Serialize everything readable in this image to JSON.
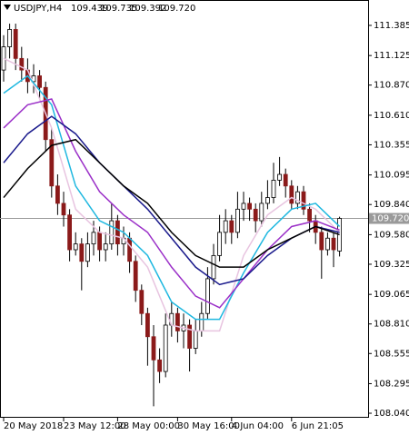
{
  "chart_data": {
    "type": "candlestick",
    "symbol": "USDJPY,H4",
    "ohlc_labels": [
      "109.439",
      "109.735",
      "109.392",
      "109.720"
    ],
    "last_price": {
      "value": 109.72,
      "label": "109.720"
    },
    "categories": [
      "20 May 2018",
      null,
      null,
      null,
      null,
      null,
      null,
      null,
      null,
      null,
      "23 May 12:00",
      null,
      null,
      null,
      null,
      null,
      null,
      null,
      null,
      "28 May 00:00",
      null,
      null,
      null,
      null,
      null,
      null,
      null,
      null,
      null,
      "30 May 16:00",
      null,
      null,
      null,
      null,
      null,
      null,
      null,
      null,
      "4 Jun 04:00",
      null,
      null,
      null,
      null,
      null,
      null,
      null,
      null,
      null,
      "6 Jun 21:05",
      null,
      null,
      null,
      null,
      null,
      null,
      null,
      null
    ],
    "open": [
      111.0,
      111.2,
      111.35,
      111.1,
      111.0,
      110.9,
      110.95,
      110.85,
      110.4,
      110.0,
      109.85,
      109.75,
      109.45,
      109.5,
      109.35,
      109.5,
      109.6,
      109.45,
      109.5,
      109.7,
      109.5,
      109.55,
      109.35,
      109.1,
      108.9,
      108.7,
      108.5,
      108.4,
      108.8,
      108.9,
      108.75,
      108.8,
      108.6,
      108.75,
      108.9,
      109.2,
      109.4,
      109.6,
      109.7,
      109.6,
      109.8,
      109.85,
      109.8,
      109.7,
      109.85,
      109.9,
      110.05,
      110.1,
      110.0,
      109.85,
      109.95,
      109.8,
      109.7,
      109.6,
      109.45,
      109.55,
      109.439
    ],
    "high": [
      111.3,
      111.4,
      111.4,
      111.2,
      111.1,
      111.05,
      111.0,
      110.9,
      110.5,
      110.1,
      109.95,
      109.8,
      109.6,
      109.55,
      109.6,
      109.7,
      109.65,
      109.6,
      109.85,
      109.75,
      109.65,
      109.6,
      109.4,
      109.15,
      108.95,
      108.8,
      108.6,
      108.9,
      109.0,
      108.95,
      108.9,
      108.85,
      108.85,
      109.0,
      109.3,
      109.5,
      109.75,
      109.8,
      109.75,
      109.95,
      109.95,
      109.9,
      109.85,
      109.95,
      110.05,
      110.2,
      110.25,
      110.15,
      110.05,
      110.0,
      110.0,
      109.85,
      109.75,
      109.65,
      109.6,
      109.6,
      109.735
    ],
    "low": [
      110.9,
      111.1,
      111.0,
      110.9,
      110.8,
      110.8,
      110.75,
      110.3,
      109.9,
      109.75,
      109.65,
      109.35,
      109.4,
      109.1,
      109.3,
      109.4,
      109.35,
      109.35,
      109.45,
      109.4,
      109.4,
      109.25,
      109.0,
      108.8,
      108.45,
      108.1,
      108.3,
      108.35,
      108.7,
      108.65,
      108.6,
      108.4,
      108.55,
      108.7,
      108.85,
      109.15,
      109.35,
      109.5,
      109.5,
      109.55,
      109.7,
      109.7,
      109.6,
      109.65,
      109.8,
      109.85,
      110.0,
      109.9,
      109.8,
      109.8,
      109.75,
      109.6,
      109.5,
      109.2,
      109.4,
      109.3,
      109.392
    ],
    "close": [
      111.2,
      111.35,
      111.1,
      111.0,
      110.9,
      110.95,
      110.85,
      110.4,
      110.0,
      109.85,
      109.75,
      109.45,
      109.5,
      109.35,
      109.5,
      109.6,
      109.45,
      109.5,
      109.7,
      109.5,
      109.55,
      109.35,
      109.1,
      108.9,
      108.7,
      108.5,
      108.4,
      108.8,
      108.9,
      108.75,
      108.8,
      108.6,
      108.75,
      108.9,
      109.2,
      109.4,
      109.6,
      109.7,
      109.6,
      109.8,
      109.85,
      109.8,
      109.7,
      109.85,
      109.9,
      110.05,
      110.1,
      110.0,
      109.85,
      109.95,
      109.8,
      109.7,
      109.6,
      109.45,
      109.55,
      109.45,
      109.72
    ],
    "up_color": "#ffffff",
    "down_color": "#8b1a1a",
    "series": [
      {
        "color": "#e8c4e0",
        "x": [
          0,
          4,
          8,
          12,
          16,
          20,
          24,
          28,
          32,
          36,
          40,
          44,
          48,
          52,
          56
        ],
        "values": [
          111.1,
          111.0,
          110.5,
          109.8,
          109.6,
          109.55,
          109.3,
          108.8,
          108.75,
          108.75,
          109.4,
          109.75,
          109.9,
          109.8,
          109.6
        ]
      },
      {
        "color": "#1fb8e0",
        "x": [
          0,
          4,
          8,
          12,
          16,
          20,
          24,
          28,
          32,
          36,
          40,
          44,
          48,
          52,
          56
        ],
        "values": [
          110.8,
          110.95,
          110.7,
          110.0,
          109.7,
          109.6,
          109.4,
          109.0,
          108.85,
          108.85,
          109.25,
          109.6,
          109.8,
          109.85,
          109.65
        ]
      },
      {
        "color": "#9b30c8",
        "x": [
          0,
          4,
          8,
          12,
          16,
          20,
          24,
          28,
          32,
          36,
          40,
          44,
          48,
          52,
          56
        ],
        "values": [
          110.5,
          110.7,
          110.75,
          110.3,
          109.95,
          109.75,
          109.6,
          109.3,
          109.05,
          108.95,
          109.2,
          109.45,
          109.65,
          109.7,
          109.62
        ]
      },
      {
        "color": "#1a1a8c",
        "x": [
          0,
          4,
          8,
          12,
          16,
          20,
          24,
          28,
          32,
          36,
          40,
          44,
          48,
          52,
          56
        ],
        "values": [
          110.2,
          110.45,
          110.6,
          110.45,
          110.2,
          110.0,
          109.8,
          109.55,
          109.3,
          109.15,
          109.2,
          109.4,
          109.55,
          109.65,
          109.6
        ]
      },
      {
        "color": "#000000",
        "x": [
          0,
          4,
          8,
          12,
          16,
          20,
          24,
          28,
          32,
          36,
          40,
          44,
          48,
          52,
          56
        ],
        "values": [
          109.9,
          110.15,
          110.35,
          110.4,
          110.2,
          110.0,
          109.85,
          109.6,
          109.4,
          109.3,
          109.3,
          109.45,
          109.55,
          109.65,
          109.58
        ]
      }
    ],
    "ylim": [
      108.001,
      111.604
    ],
    "yticks": [
      111.385,
      111.125,
      {
        "value": 110.87,
        "label": "110.870"
      },
      {
        "value": 110.61,
        "label": "110.610"
      },
      110.355,
      110.095,
      {
        "value": 109.84,
        "label": "109.840"
      },
      {
        "value": 109.58,
        "label": "109.580"
      },
      109.325,
      109.065,
      {
        "value": 108.81,
        "label": "108.810"
      },
      108.555,
      108.295,
      {
        "value": 108.04,
        "label": "108.040"
      }
    ]
  }
}
